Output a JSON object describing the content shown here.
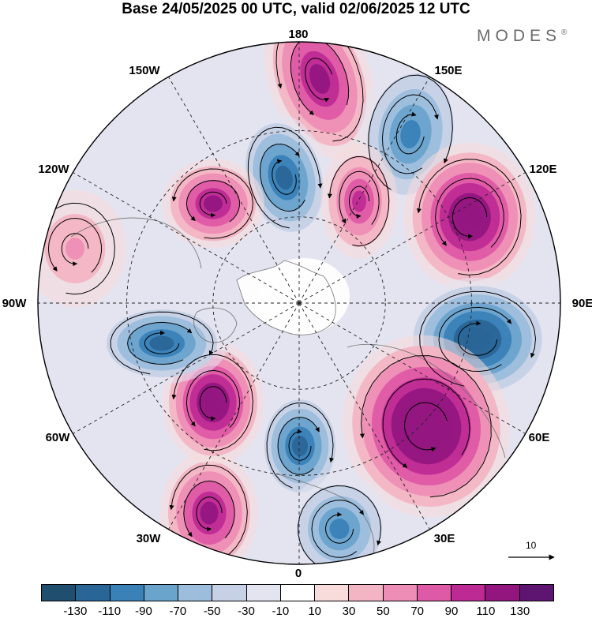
{
  "title": "Base 24/05/2025 00 UTC, valid 02/06/2025 12 UTC",
  "logo": "MODES",
  "logo_mark": "®",
  "map": {
    "projection": "north-polar-stereographic",
    "longitude_labels": [
      "180",
      "150E",
      "120E",
      "90E",
      "60E",
      "30E",
      "0",
      "30W",
      "60W",
      "90W",
      "120W",
      "150W"
    ],
    "field": "shaded anomaly with streamlines",
    "anomaly_centers": [
      {
        "name": "positive",
        "sign": 1,
        "strength": 90
      },
      {
        "name": "negative",
        "sign": -1,
        "strength": -90
      },
      {
        "name": "negative",
        "sign": -1,
        "strength": -70
      },
      {
        "name": "positive",
        "sign": 1,
        "strength": 70
      },
      {
        "name": "positive",
        "sign": 1,
        "strength": 110
      },
      {
        "name": "negative",
        "sign": -1,
        "strength": -120
      },
      {
        "name": "positive",
        "sign": 1,
        "strength": 130
      },
      {
        "name": "negative",
        "sign": -1,
        "strength": -90
      },
      {
        "name": "negative",
        "sign": -1,
        "strength": -70
      },
      {
        "name": "positive",
        "sign": 1,
        "strength": 90
      },
      {
        "name": "positive",
        "sign": 1,
        "strength": 110
      },
      {
        "name": "negative",
        "sign": -1,
        "strength": -90
      },
      {
        "name": "positive",
        "sign": 1,
        "strength": 90
      },
      {
        "name": "positive",
        "sign": 1,
        "strength": 40
      }
    ]
  },
  "vector_key": {
    "label": "10"
  },
  "colorbar": {
    "colors": [
      "#1f4e6e",
      "#2a6597",
      "#3a81b8",
      "#6aa3cc",
      "#9cbddc",
      "#c6d1e6",
      "#e4e4f1",
      "#ffffff",
      "#f8dbdb",
      "#f3b4c3",
      "#ee8db5",
      "#df5aa6",
      "#be2a94",
      "#93167f",
      "#5e1572"
    ],
    "tick_labels": [
      "-130",
      "-110",
      "-90",
      "-70",
      "-50",
      "-30",
      "-10",
      "10",
      "30",
      "50",
      "70",
      "90",
      "110",
      "130"
    ]
  }
}
